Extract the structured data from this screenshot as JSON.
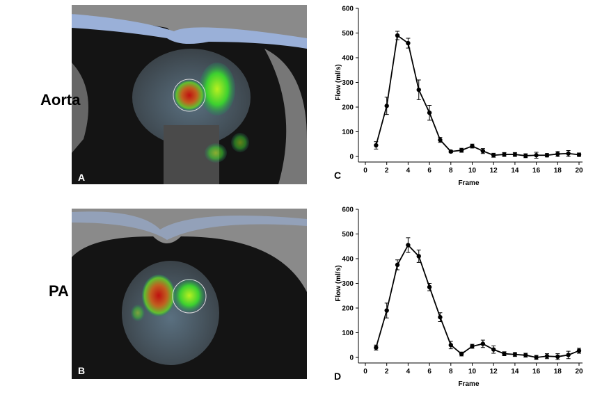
{
  "rows": [
    {
      "label": "Aorta",
      "image_label": "A"
    },
    {
      "label": "PA",
      "image_label": "B"
    }
  ],
  "chart_data": [
    {
      "type": "line",
      "panel_label": "C",
      "xlabel": "Frame",
      "ylabel": "Flow (ml/s)",
      "x": [
        1,
        2,
        3,
        4,
        5,
        6,
        7,
        8,
        9,
        10,
        11,
        12,
        13,
        14,
        15,
        16,
        17,
        18,
        19,
        20
      ],
      "series": [
        {
          "color": "#000000",
          "values": [
            45,
            205,
            490,
            459,
            270,
            177,
            67,
            20,
            25,
            42,
            22,
            5,
            8,
            8,
            3,
            5,
            5,
            10,
            12,
            7
          ],
          "errors": [
            15,
            35,
            17,
            20,
            40,
            30,
            10,
            5,
            8,
            8,
            10,
            8,
            8,
            8,
            8,
            12,
            7,
            10,
            12,
            7
          ]
        }
      ],
      "xlim": [
        0,
        20
      ],
      "ylim": [
        0,
        600
      ],
      "xticks": [
        0,
        2,
        4,
        6,
        8,
        10,
        12,
        14,
        16,
        18,
        20
      ],
      "yticks": [
        0,
        100,
        200,
        300,
        400,
        500,
        600
      ]
    },
    {
      "type": "line",
      "panel_label": "D",
      "xlabel": "Frame",
      "ylabel": "Flow (ml/s)",
      "x": [
        1,
        2,
        3,
        4,
        5,
        6,
        7,
        8,
        9,
        10,
        11,
        12,
        13,
        14,
        15,
        16,
        17,
        18,
        19,
        20
      ],
      "series": [
        {
          "color": "#000000",
          "values": [
            40,
            190,
            375,
            455,
            410,
            285,
            163,
            50,
            14,
            45,
            55,
            32,
            15,
            12,
            9,
            0,
            5,
            3,
            10,
            27
          ],
          "errors": [
            10,
            30,
            20,
            30,
            25,
            15,
            18,
            15,
            8,
            8,
            15,
            15,
            8,
            8,
            8,
            8,
            10,
            12,
            15,
            10
          ]
        }
      ],
      "xlim": [
        0,
        20
      ],
      "ylim": [
        0,
        600
      ],
      "xticks": [
        0,
        2,
        4,
        6,
        8,
        10,
        12,
        14,
        16,
        18,
        20
      ],
      "yticks": [
        0,
        100,
        200,
        300,
        400,
        500,
        600
      ]
    }
  ]
}
